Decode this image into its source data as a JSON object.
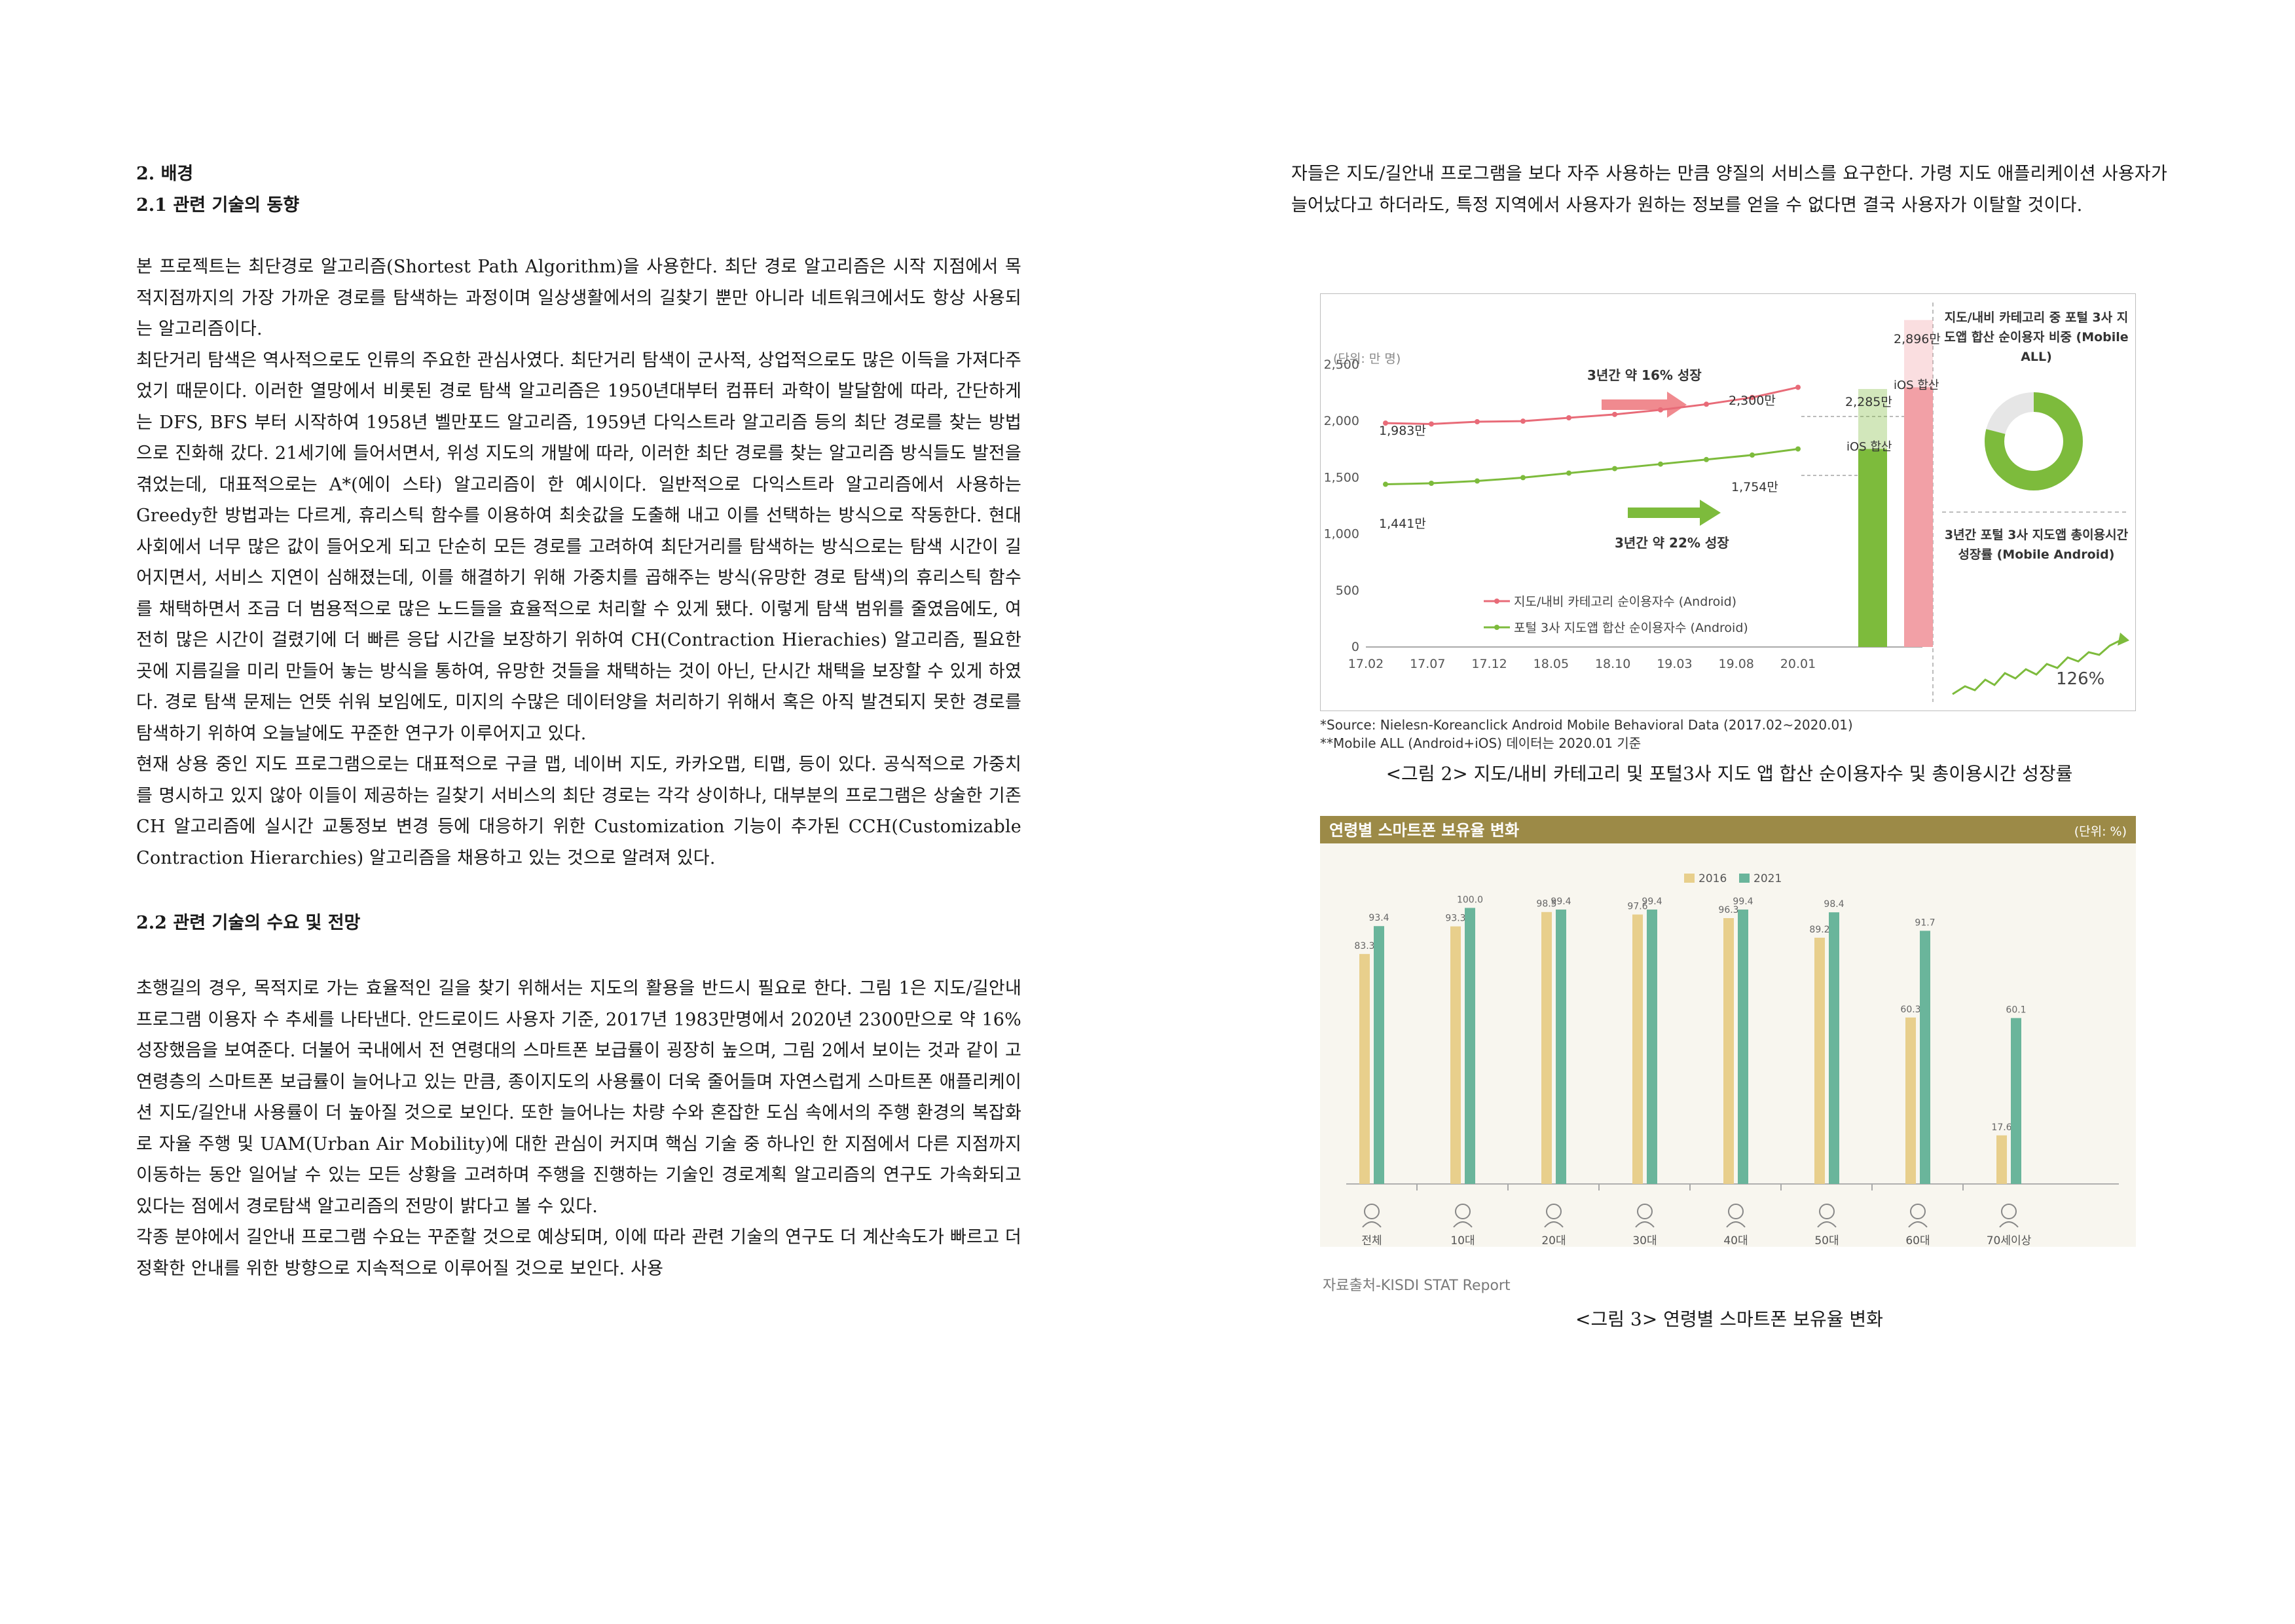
{
  "left": {
    "section_title": "2. 배경",
    "subsection1_title": "2.1 관련 기술의 동향",
    "para1": "본 프로젝트는 최단경로 알고리즘(Shortest Path Algorithm)을 사용한다. 최단 경로 알고리즘은 시작 지점에서 목적지점까지의 가장 가까운 경로를 탐색하는 과정이며 일상생활에서의 길찾기 뿐만 아니라 네트워크에서도 항상 사용되는 알고리즘이다.",
    "para2": "최단거리 탐색은 역사적으로도 인류의 주요한 관심사였다. 최단거리 탐색이 군사적, 상업적으로도 많은 이득을 가져다주었기 때문이다. 이러한 열망에서 비롯된 경로 탐색 알고리즘은 1950년대부터 컴퓨터 과학이 발달함에 따라, 간단하게는 DFS, BFS 부터 시작하여 1958년 벨만포드 알고리즘, 1959년 다익스트라 알고리즘 등의 최단 경로를 찾는 방법으로 진화해 갔다. 21세기에 들어서면서, 위성 지도의 개발에 따라, 이러한 최단 경로를 찾는 알고리즘 방식들도 발전을 겪었는데, 대표적으로는 A*(에이 스타) 알고리즘이 한 예시이다. 일반적으로 다익스트라 알고리즘에서 사용하는 Greedy한 방법과는 다르게, 휴리스틱 함수를 이용하여 최솟값을 도출해 내고 이를 선택하는 방식으로 작동한다. 현대 사회에서 너무 많은 값이 들어오게 되고 단순히 모든 경로를 고려하여 최단거리를 탐색하는 방식으로는 탐색 시간이 길어지면서, 서비스 지연이 심해졌는데, 이를 해결하기 위해 가중치를 곱해주는 방식(유망한 경로 탐색)의 휴리스틱 함수를 채택하면서 조금 더 범용적으로 많은 노드들을 효율적으로 처리할 수 있게 됐다. 이렇게 탐색 범위를 줄였음에도, 여전히 많은 시간이 걸렸기에 더 빠른 응답 시간을 보장하기 위하여 CH(Contraction Hierachies) 알고리즘, 필요한 곳에 지름길을 미리 만들어 놓는 방식을 통하여, 유망한 것들을 채택하는 것이 아닌, 단시간 채택을 보장할 수 있게 하였다. 경로 탐색 문제는 언뜻 쉬워 보임에도, 미지의 수많은 데이터양을 처리하기 위해서 혹은 아직 발견되지 못한 경로를 탐색하기 위하여 오늘날에도 꾸준한 연구가 이루어지고 있다.",
    "para3": "현재 상용 중인 지도 프로그램으로는 대표적으로 구글 맵, 네이버 지도, 카카오맵, 티맵, 등이 있다. 공식적으로 가중치를 명시하고 있지 않아 이들이 제공하는 길찾기 서비스의 최단 경로는 각각 상이하나, 대부분의 프로그램은 상술한 기존 CH 알고리즘에 실시간 교통정보 변경 등에 대응하기 위한 Customization 기능이 추가된 CCH(Customizable Contraction Hierarchies) 알고리즘을 채용하고 있는 것으로 알려져 있다.",
    "subsection2_title": "2.2 관련 기술의 수요 및 전망",
    "para4": "초행길의 경우, 목적지로 가는 효율적인 길을 찾기 위해서는 지도의 활용을 반드시 필요로 한다. 그림 1은 지도/길안내 프로그램 이용자 수 추세를 나타낸다. 안드로이드 사용자 기준, 2017년 1983만명에서 2020년 2300만으로 약 16% 성장했음을 보여준다. 더불어 국내에서 전 연령대의 스마트폰 보급률이 굉장히 높으며, 그림 2에서 보이는 것과 같이 고연령층의 스마트폰 보급률이 늘어나고 있는 만큼, 종이지도의 사용률이 더욱 줄어들며 자연스럽게 스마트폰 애플리케이션 지도/길안내 사용률이 더 높아질 것으로 보인다. 또한 늘어나는 차량 수와 혼잡한 도심 속에서의 주행 환경의 복잡화로 자율 주행 및 UAM(Urban Air Mobility)에 대한 관심이 커지며 핵심 기술 중 하나인 한 지점에서 다른 지점까지 이동하는 동안 일어날 수 있는 모든 상황을 고려하며 주행을 진행하는 기술인 경로계획 알고리즘의 연구도 가속화되고 있다는 점에서 경로탐색 알고리즘의 전망이 밝다고 볼 수 있다.",
    "para5": "각종 분야에서 길안내 프로그램 수요는 꾸준할 것으로 예상되며, 이에 따라 관련 기술의 연구도 더 계산속도가 빠르고 더 정확한 안내를 위한 방향으로 지속적으로 이루어질 것으로 보인다. 사용"
  },
  "right": {
    "para_cont": "자들은 지도/길안내 프로그램을 보다 자주 사용하는 만큼 양질의 서비스를 요구한다. 가령 지도 애플리케이션 사용자가 늘어났다고 하더라도, 특정 지역에서 사용자가 원하는 정보를 얻을 수 없다면 결국 사용자가 이탈할 것이다.",
    "fig2_source1": "*Source: Nielesn-Koreanclick Android Mobile Behavioral Data (2017.02~2020.01)",
    "fig2_source2": "**Mobile ALL (Android+iOS) 데이터는 2020.01 기준",
    "fig2_caption": "<그림 2> 지도/내비 카테고리 및 포털3사 지도 앱 합산 순이용자수 및 총이용시간 성장률",
    "fig3_source": "자료출처-KISDI STAT Report",
    "fig3_caption": "<그림 3> 연령별 스마트폰 보유율 변화"
  },
  "fig2_labels": {
    "unit": "(단위: 만 명)",
    "growth_top": "3년간 약 16% 성장",
    "growth_bottom": "3년간 약 22% 성장",
    "label_1983": "1,983만",
    "label_2300": "2,300만",
    "label_1441": "1,441만",
    "label_1754": "1,754만",
    "bar_label_2285": "2,285만",
    "bar_label_2896": "2,896만",
    "ios_label": "iOS 합산",
    "legend_red": "지도/내비 카테고리 순이용자수 (Android)",
    "legend_green": "포털 3사 지도앱 합산 순이용자수 (Android)",
    "side_title": "지도/내비 카테고리 중 포털 3사 지도앱 합산 순이용자 비중 (Mobile ALL)",
    "donut_value": "79%",
    "side_title2": "3년간 포털 3사 지도앱 총이용시간 성장률 (Mobile Android)",
    "growth_value": "126%"
  },
  "chart_data": [
    {
      "type": "line",
      "title": "",
      "ylabel": "(단위: 만 명)",
      "x_ticks": [
        "17.02",
        "17.07",
        "17.12",
        "18.05",
        "18.10",
        "19.03",
        "19.08",
        "20.01"
      ],
      "y_ticks": [
        0,
        500,
        1000,
        1500,
        2000,
        2500
      ],
      "ylim": [
        0,
        2900
      ],
      "series": [
        {
          "name": "지도/내비 카테고리 순이용자수 (Android)",
          "color": "#e86b78",
          "values": [
            1983,
            1975,
            1995,
            2000,
            2030,
            2060,
            2100,
            2150,
            2210,
            2300
          ]
        },
        {
          "name": "포털 3사 지도앱 합산 순이용자수 (Android)",
          "color": "#7dbb3c",
          "values": [
            1441,
            1450,
            1470,
            1500,
            1540,
            1580,
            1620,
            1660,
            1700,
            1754
          ]
        }
      ],
      "stacked_bars": [
        {
          "label": "2,285만",
          "android": 1754,
          "total": 2285,
          "color": "#7dbb3c"
        },
        {
          "label": "2,896만",
          "android": 2300,
          "total": 2896,
          "color": "#f2a0a6"
        }
      ],
      "donut": {
        "value": 79,
        "color": "#7dbb3c"
      },
      "growth": {
        "value": 126
      }
    },
    {
      "type": "bar",
      "title": "연령별 스마트폰 보유율 변화",
      "unit": "(단위: %)",
      "categories": [
        "전체",
        "10대",
        "20대",
        "30대",
        "40대",
        "50대",
        "60대",
        "70세이상"
      ],
      "series": [
        {
          "name": "2016",
          "color": "#e8cf8c",
          "values": [
            83.3,
            93.3,
            98.5,
            97.6,
            96.3,
            89.2,
            60.3,
            17.6
          ]
        },
        {
          "name": "2021",
          "color": "#6ab59b",
          "values": [
            93.4,
            100.0,
            99.4,
            99.4,
            99.4,
            98.4,
            91.7,
            60.1
          ]
        }
      ],
      "ylim": [
        0,
        110
      ]
    }
  ]
}
